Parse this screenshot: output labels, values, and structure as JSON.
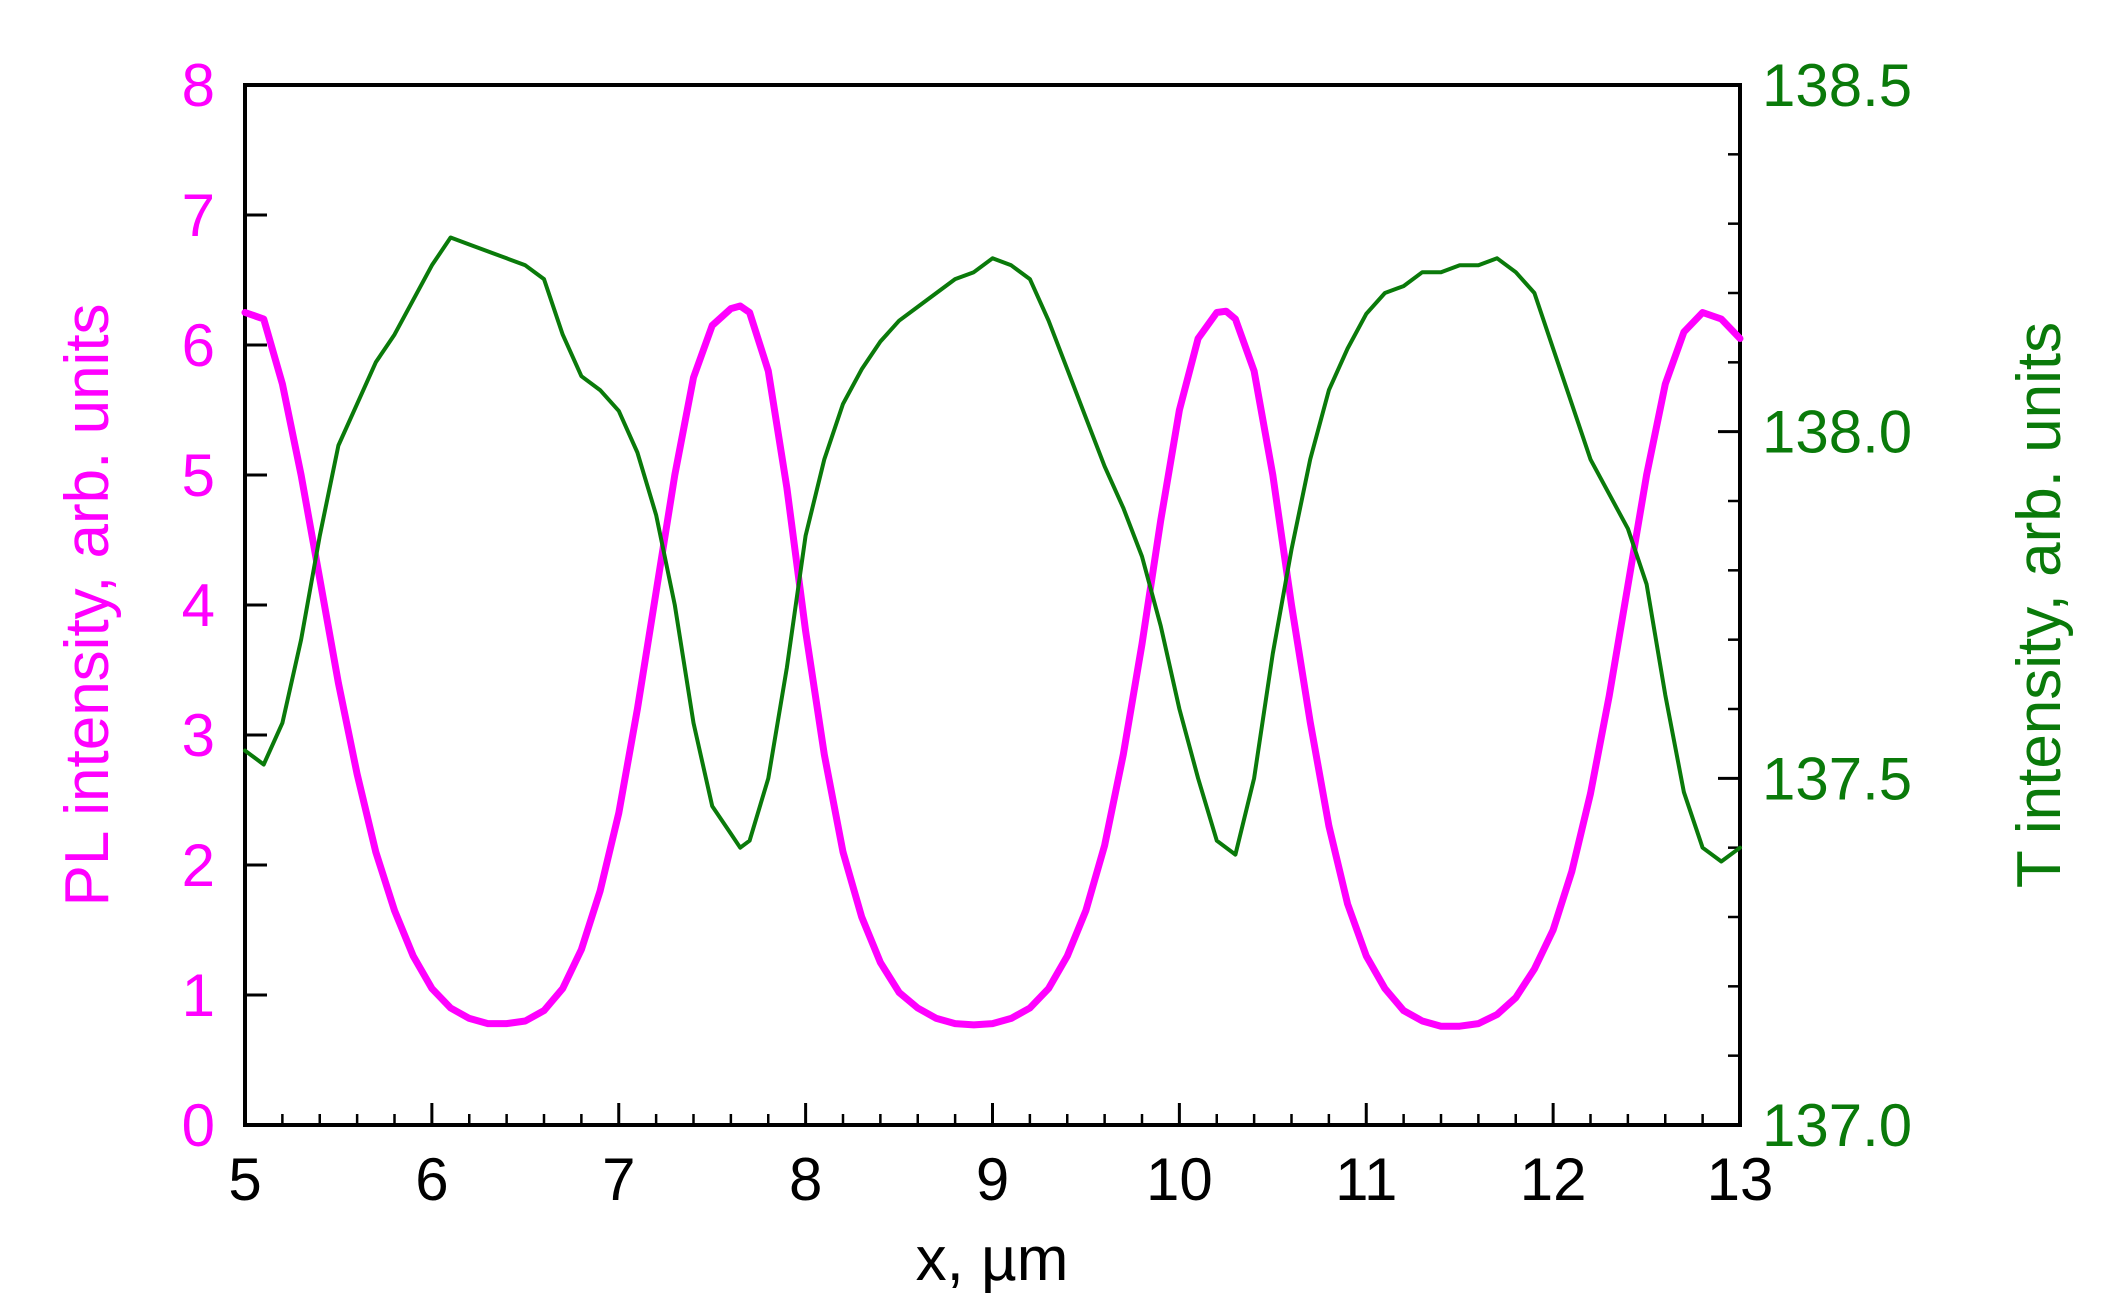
{
  "chart_data": {
    "type": "line",
    "title": "",
    "xlabel": "x, µm",
    "ylabel_left": "PL intensity, arb. units",
    "ylabel_right": "T intensity, arb. units",
    "xlim": [
      5,
      13
    ],
    "ylim_left": [
      0,
      8
    ],
    "ylim_right": [
      137.0,
      138.5
    ],
    "x_ticks": [
      "5",
      "6",
      "7",
      "8",
      "9",
      "10",
      "11",
      "12",
      "13"
    ],
    "y_left_ticks": [
      "0",
      "1",
      "2",
      "3",
      "4",
      "5",
      "6",
      "7",
      "8"
    ],
    "y_right_ticks": [
      "137.0",
      "137.5",
      "138.0",
      "138.5"
    ],
    "grid": false,
    "colors": {
      "pl": "#ff00ff",
      "t": "#0a7a0a",
      "axis": "#000000"
    },
    "series": [
      {
        "axis": "left",
        "x": [
          5.0,
          5.1,
          5.2,
          5.3,
          5.4,
          5.5,
          5.6,
          5.7,
          5.8,
          5.9,
          6.0,
          6.1,
          6.2,
          6.3,
          6.4,
          6.5,
          6.6,
          6.7,
          6.8,
          6.9,
          7.0,
          7.1,
          7.2,
          7.3,
          7.4,
          7.5,
          7.6,
          7.65,
          7.7,
          7.8,
          7.9,
          8.0,
          8.1,
          8.2,
          8.3,
          8.4,
          8.5,
          8.6,
          8.7,
          8.8,
          8.9,
          9.0,
          9.1,
          9.2,
          9.3,
          9.4,
          9.5,
          9.6,
          9.7,
          9.8,
          9.9,
          10.0,
          10.1,
          10.2,
          10.25,
          10.3,
          10.4,
          10.5,
          10.6,
          10.7,
          10.8,
          10.9,
          11.0,
          11.1,
          11.2,
          11.3,
          11.4,
          11.5,
          11.6,
          11.7,
          11.8,
          11.9,
          12.0,
          12.1,
          12.2,
          12.3,
          12.4,
          12.5,
          12.6,
          12.7,
          12.8,
          12.9,
          13.0
        ],
        "y": [
          6.25,
          6.2,
          5.7,
          5.0,
          4.2,
          3.4,
          2.7,
          2.1,
          1.65,
          1.3,
          1.05,
          0.9,
          0.82,
          0.78,
          0.78,
          0.8,
          0.88,
          1.05,
          1.35,
          1.8,
          2.4,
          3.2,
          4.1,
          5.0,
          5.75,
          6.15,
          6.28,
          6.3,
          6.25,
          5.8,
          4.9,
          3.8,
          2.85,
          2.1,
          1.6,
          1.25,
          1.02,
          0.9,
          0.82,
          0.78,
          0.77,
          0.78,
          0.82,
          0.9,
          1.05,
          1.3,
          1.65,
          2.15,
          2.85,
          3.7,
          4.65,
          5.5,
          6.05,
          6.25,
          6.26,
          6.2,
          5.8,
          5.0,
          4.0,
          3.1,
          2.3,
          1.7,
          1.3,
          1.05,
          0.88,
          0.8,
          0.76,
          0.76,
          0.78,
          0.85,
          0.98,
          1.2,
          1.5,
          1.95,
          2.55,
          3.3,
          4.15,
          5.0,
          5.7,
          6.1,
          6.25,
          6.2,
          6.05
        ]
      },
      {
        "axis": "right",
        "x": [
          5.0,
          5.1,
          5.2,
          5.3,
          5.4,
          5.5,
          5.6,
          5.7,
          5.8,
          5.9,
          6.0,
          6.1,
          6.2,
          6.3,
          6.4,
          6.5,
          6.6,
          6.7,
          6.8,
          6.9,
          7.0,
          7.1,
          7.2,
          7.3,
          7.4,
          7.5,
          7.6,
          7.65,
          7.7,
          7.8,
          7.9,
          8.0,
          8.1,
          8.2,
          8.3,
          8.4,
          8.5,
          8.6,
          8.7,
          8.8,
          8.9,
          9.0,
          9.1,
          9.2,
          9.3,
          9.4,
          9.5,
          9.6,
          9.7,
          9.8,
          9.9,
          10.0,
          10.1,
          10.2,
          10.3,
          10.4,
          10.5,
          10.6,
          10.7,
          10.8,
          10.9,
          11.0,
          11.1,
          11.2,
          11.3,
          11.4,
          11.5,
          11.6,
          11.7,
          11.8,
          11.9,
          12.0,
          12.1,
          12.2,
          12.3,
          12.4,
          12.5,
          12.6,
          12.7,
          12.8,
          12.9,
          13.0
        ],
        "y": [
          137.54,
          137.52,
          137.58,
          137.7,
          137.85,
          137.98,
          138.04,
          138.1,
          138.14,
          138.19,
          138.24,
          138.28,
          138.27,
          138.26,
          138.25,
          138.24,
          138.22,
          138.14,
          138.08,
          138.06,
          138.03,
          137.97,
          137.88,
          137.75,
          137.58,
          137.46,
          137.42,
          137.4,
          137.41,
          137.5,
          137.66,
          137.85,
          137.96,
          138.04,
          138.09,
          138.13,
          138.16,
          138.18,
          138.2,
          138.22,
          138.23,
          138.25,
          138.24,
          138.22,
          138.16,
          138.09,
          138.02,
          137.95,
          137.89,
          137.82,
          137.72,
          137.6,
          137.5,
          137.41,
          137.39,
          137.5,
          137.68,
          137.83,
          137.96,
          138.06,
          138.12,
          138.17,
          138.2,
          138.21,
          138.23,
          138.23,
          138.24,
          138.24,
          138.25,
          138.23,
          138.2,
          138.12,
          138.04,
          137.96,
          137.91,
          137.86,
          137.78,
          137.62,
          137.48,
          137.4,
          137.38,
          137.4
        ]
      }
    ]
  }
}
